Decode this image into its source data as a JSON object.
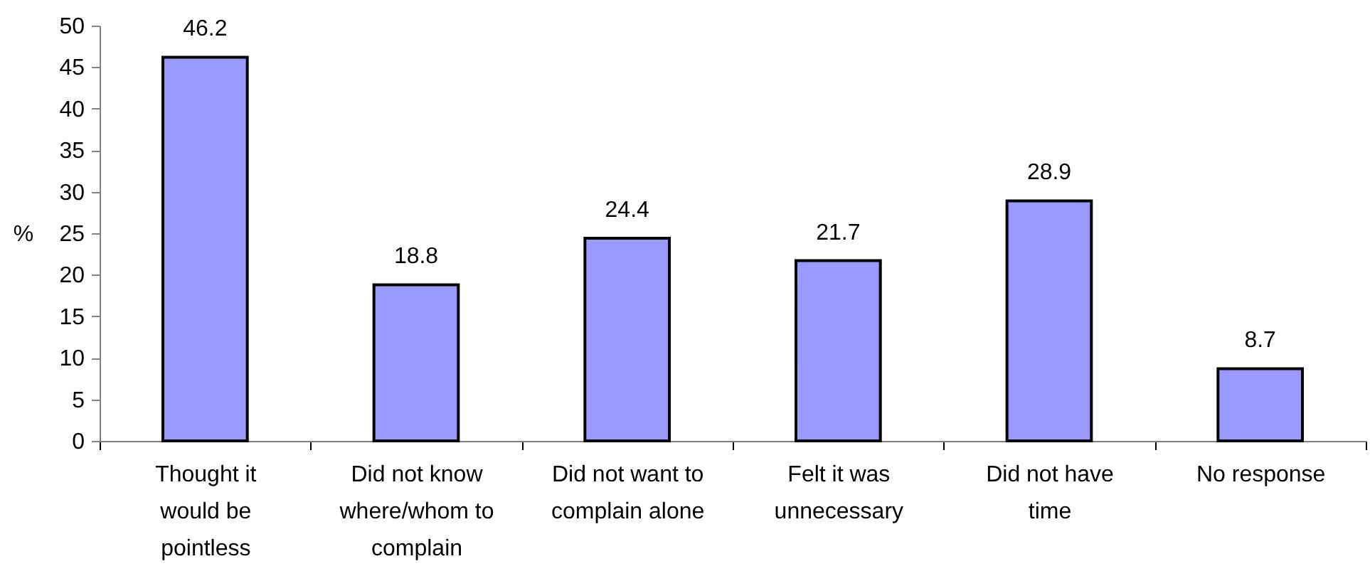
{
  "chart_data": {
    "type": "bar",
    "categories": [
      "Thought it would be pointless",
      "Did not know where/whom to complain",
      "Did not want to complain alone",
      "Felt it was unnecessary",
      "Did not have time",
      "No response"
    ],
    "values": [
      46.2,
      18.8,
      24.4,
      21.7,
      28.9,
      8.7
    ],
    "color": "#9999ff",
    "ylabel": "%",
    "ylim": [
      0,
      50
    ],
    "yticks": [
      0,
      5,
      10,
      15,
      20,
      25,
      30,
      35,
      40,
      45,
      50
    ],
    "data_labels": true
  }
}
